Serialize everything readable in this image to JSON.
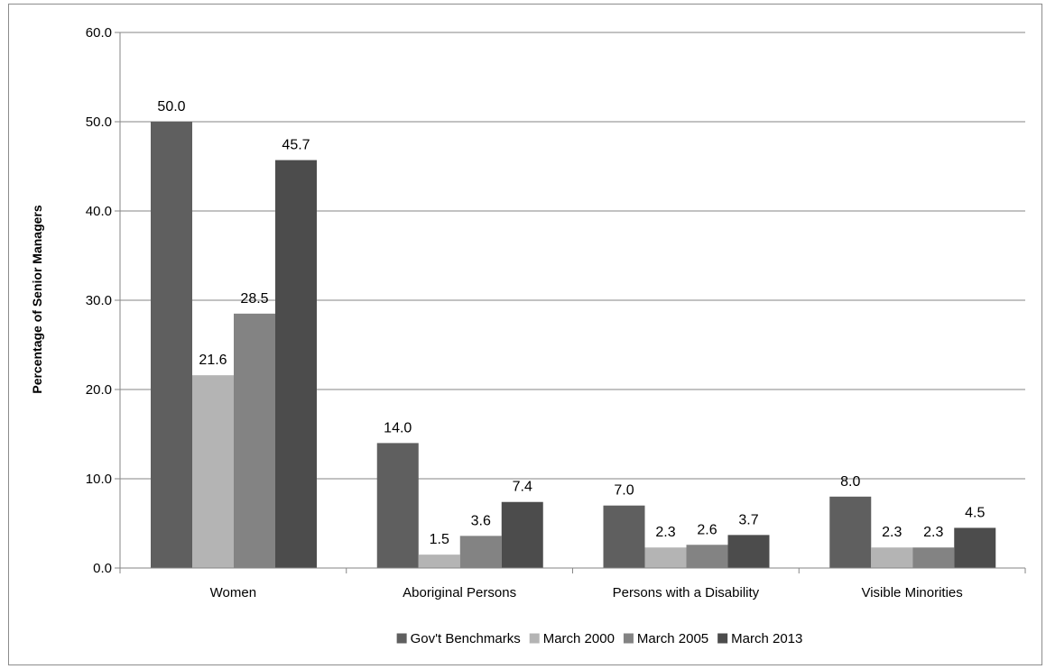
{
  "chart_data": {
    "type": "bar",
    "title": "",
    "xlabel": "",
    "ylabel": "Percentage of  Senior Managers",
    "ylim": [
      0,
      60
    ],
    "yticks": [
      "0.0",
      "10.0",
      "20.0",
      "30.0",
      "40.0",
      "50.0",
      "60.0"
    ],
    "grid": true,
    "legend_position": "bottom",
    "categories": [
      "Women",
      "Aboriginal Persons",
      "Persons with a Disability",
      "Visible Minorities"
    ],
    "series": [
      {
        "name": "Gov't Benchmarks",
        "color": "#5f5f5f",
        "values": [
          50.0,
          14.0,
          7.0,
          8.0
        ],
        "labels": [
          "50.0",
          "14.0",
          "7.0",
          "8.0"
        ]
      },
      {
        "name": "March 2000",
        "color": "#b4b4b4",
        "values": [
          21.6,
          1.5,
          2.3,
          2.3
        ],
        "labels": [
          "21.6",
          "1.5",
          "2.3",
          "2.3"
        ]
      },
      {
        "name": "March 2005",
        "color": "#838383",
        "values": [
          28.5,
          3.6,
          2.6,
          2.3
        ],
        "labels": [
          "28.5",
          "3.6",
          "2.6",
          "2.3"
        ]
      },
      {
        "name": "March 2013",
        "color": "#4c4c4c",
        "values": [
          45.7,
          7.4,
          3.7,
          4.5
        ],
        "labels": [
          "45.7",
          "7.4",
          "3.7",
          "4.5"
        ]
      }
    ]
  }
}
